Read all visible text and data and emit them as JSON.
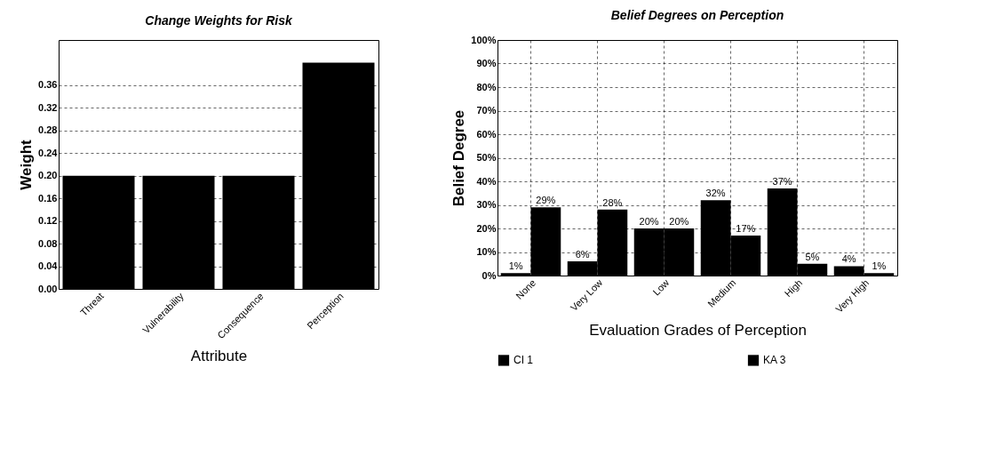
{
  "chart_data": [
    {
      "type": "bar",
      "title": "Change Weights for Risk",
      "xlabel": "Attribute",
      "ylabel": "Weight",
      "categories": [
        "Threat",
        "Vulnerability",
        "Consequence",
        "Perception"
      ],
      "values": [
        0.2,
        0.2,
        0.2,
        0.4
      ],
      "color": "#000000",
      "ylim": [
        0,
        0.44
      ],
      "yticks": [
        {
          "value": 0,
          "label": "0.00"
        },
        0.04,
        0.08,
        0.12,
        0.16,
        {
          "value": 0.2,
          "label": "0.20"
        },
        0.24,
        0.28,
        0.32,
        0.36
      ],
      "grid": "y"
    },
    {
      "type": "bar",
      "title": "Belief Degrees on Perception",
      "xlabel": "Evaluation Grades of Perception",
      "ylabel": "Belief Degree",
      "categories": [
        "None",
        "Very Low",
        "Low",
        "Medium",
        "High",
        "Very High"
      ],
      "series": [
        {
          "name": "CI 1",
          "color": "#000000",
          "values": [
            1,
            6,
            20,
            32,
            37,
            4
          ],
          "value_labels": [
            "1%",
            "6%",
            "20%",
            "32%",
            "37%",
            "4%"
          ]
        },
        {
          "name": "KA 3",
          "color": "#000000",
          "values": [
            29,
            28,
            20,
            17,
            5,
            1
          ],
          "value_labels": [
            "29%",
            "28%",
            "20%",
            "17%",
            "5%",
            "1%"
          ]
        }
      ],
      "ylim": [
        0,
        100
      ],
      "yticks": [
        {
          "value": 0,
          "label": "0%"
        },
        {
          "value": 10,
          "label": "10%"
        },
        {
          "value": 20,
          "label": "20%"
        },
        {
          "value": 30,
          "label": "30%"
        },
        {
          "value": 40,
          "label": "40%"
        },
        {
          "value": 50,
          "label": "50%"
        },
        {
          "value": 60,
          "label": "60%"
        },
        {
          "value": 70,
          "label": "70%"
        },
        {
          "value": 80,
          "label": "80%"
        },
        {
          "value": 90,
          "label": "90%"
        },
        {
          "value": 100,
          "label": "100%"
        }
      ],
      "grid": true,
      "legend": "bottom"
    }
  ]
}
